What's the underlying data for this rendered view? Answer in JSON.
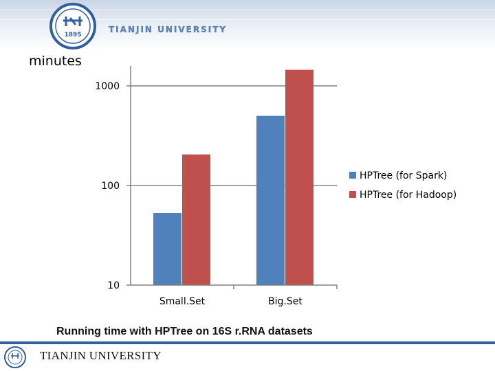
{
  "header": {
    "university_name": "TIANJIN UNIVERSITY",
    "seal_text": "1895"
  },
  "chart_data": {
    "type": "bar",
    "y_unit_label": "minutes",
    "yscale": "log",
    "ylim": [
      10,
      1600
    ],
    "yticks": [
      10,
      100,
      1000
    ],
    "categories": [
      "Small.Set",
      "Big.Set"
    ],
    "series": [
      {
        "name": "HPTree (for Spark)",
        "color": "#4f81bd",
        "values": [
          53,
          500
        ]
      },
      {
        "name": "HPTree (for Hadoop)",
        "color": "#c0504d",
        "values": [
          205,
          1450
        ]
      }
    ],
    "legend_position": "right",
    "grid": true
  },
  "caption": "Running time with HPTree on 16S r.RNA datasets",
  "footer": {
    "university_name": "TIANJIN UNIVERSITY"
  }
}
